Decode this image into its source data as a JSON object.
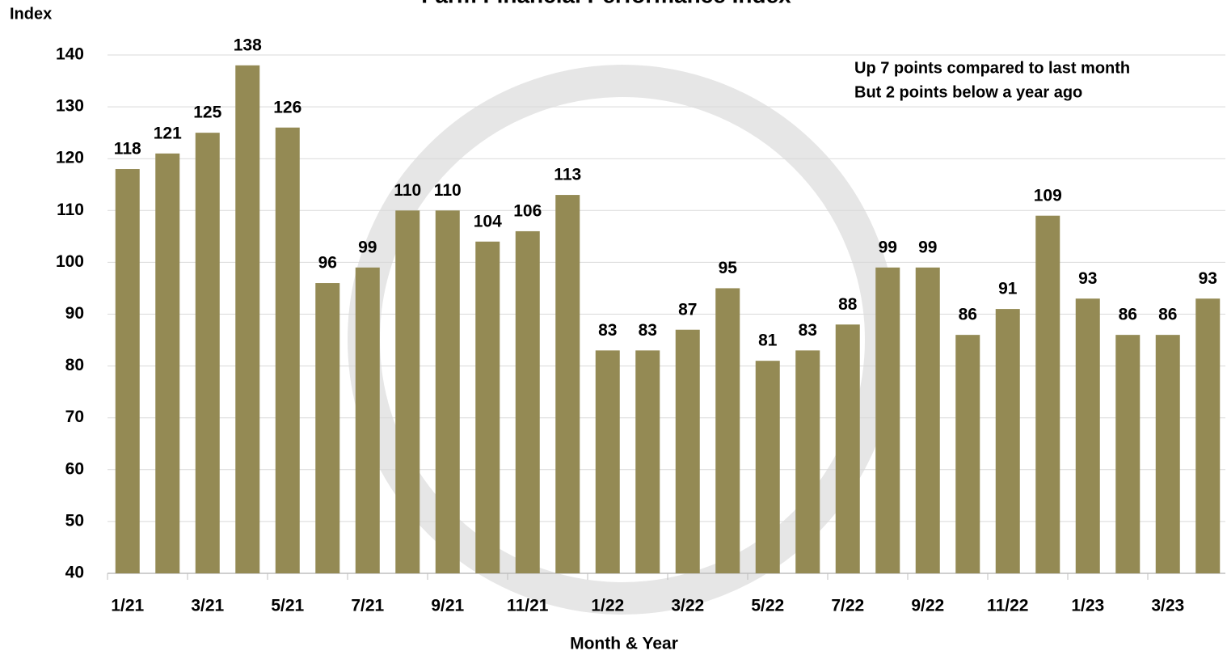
{
  "chart_data": {
    "type": "bar",
    "title": "Farm Financial Performance Index",
    "y_label": "Index",
    "x_label": "Month & Year",
    "annotations": [
      "Up 7 points compared to last month",
      "But 2 points below a year ago"
    ],
    "categories": [
      "1/21",
      null,
      "3/21",
      null,
      "5/21",
      null,
      "7/21",
      null,
      "9/21",
      null,
      "11/21",
      null,
      "1/22",
      null,
      "3/22",
      null,
      "5/22",
      null,
      "7/22",
      null,
      "9/22",
      null,
      "11/22",
      null,
      "1/23",
      null,
      "3/23",
      null
    ],
    "values": [
      118,
      121,
      125,
      138,
      126,
      96,
      99,
      110,
      110,
      104,
      106,
      113,
      83,
      83,
      87,
      95,
      81,
      83,
      88,
      99,
      99,
      86,
      91,
      109,
      93,
      86,
      86,
      93
    ],
    "color": "#948a54",
    "ylim": [
      40,
      140
    ],
    "yticks": [
      40,
      50,
      60,
      70,
      80,
      90,
      100,
      110,
      120,
      130,
      140
    ],
    "grid": true
  }
}
